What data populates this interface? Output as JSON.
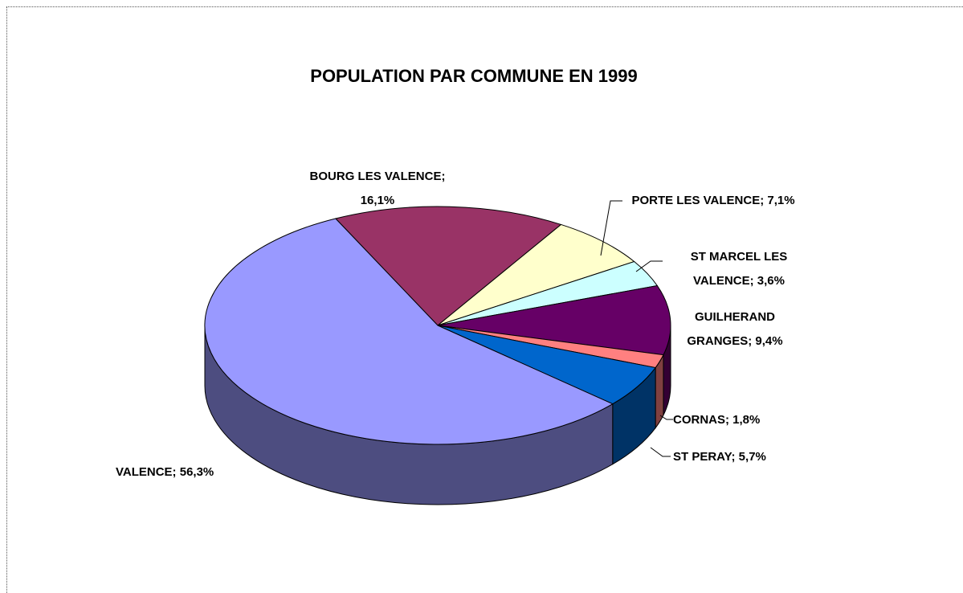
{
  "chart_data": {
    "type": "pie3d",
    "title": "POPULATION PAR COMMUNE EN 1999",
    "categories": [
      "BOURG LES VALENCE",
      "PORTE LES VALENCE",
      "ST MARCEL LES VALENCE",
      "GUILHERAND GRANGES",
      "CORNAS",
      "ST PERAY",
      "VALENCE"
    ],
    "values": [
      16.1,
      7.1,
      3.6,
      9.4,
      1.8,
      5.7,
      56.3
    ],
    "value_labels": [
      "BOURG LES VALENCE; 16,1%",
      "PORTE LES VALENCE; 7,1%",
      "ST MARCEL LES VALENCE; 3,6%",
      "GUILHERAND GRANGES; 9,4%",
      "CORNAS; 1,8%",
      "ST PERAY; 5,7%",
      "VALENCE; 56,3%"
    ],
    "colors": [
      "#993366",
      "#ffffcc",
      "#ccffff",
      "#660066",
      "#ff8080",
      "#0066cc",
      "#9999ff"
    ]
  }
}
